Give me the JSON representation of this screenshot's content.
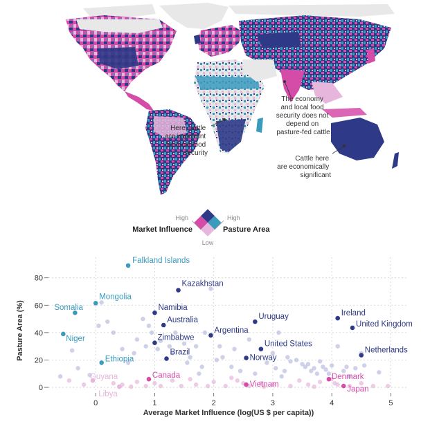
{
  "map": {
    "annotations": [
      {
        "id": "africa",
        "lines": [
          "Here, cattle",
          "are important",
          "for local food",
          "security"
        ]
      },
      {
        "id": "asia",
        "lines": [
          "The economy",
          "and local food",
          "security does not",
          "depend on",
          "pasture-fed cattle"
        ]
      },
      {
        "id": "australia",
        "lines": [
          "Cattle here",
          "are economically",
          "significant"
        ]
      }
    ]
  },
  "legend": {
    "market_label": "Market Influence",
    "pasture_label": "Pasture Area",
    "high_left": "High",
    "high_right": "High",
    "low": "Low",
    "colors": {
      "both_high": "#2e3a87",
      "market_high": "#d44ba8",
      "pasture_high": "#3a9bbd",
      "both_low": "#e6b6dc"
    }
  },
  "chart_data": {
    "type": "scatter",
    "xlabel": "Average Market Influence (log(US $ per capita))",
    "ylabel": "Pasture Area (%)",
    "xlim": [
      -0.8,
      5.3
    ],
    "ylim": [
      -3,
      95
    ],
    "xticks": [
      0,
      1,
      2,
      3,
      4,
      5
    ],
    "yticks": [
      0,
      20,
      40,
      60,
      80
    ],
    "grid": true,
    "colors": {
      "dark": "#2e3a87",
      "teal": "#3a9bbd",
      "magenta": "#d44ba8",
      "light": "#b9bede",
      "pink": "#e6b6dc"
    },
    "labeled_points": [
      {
        "name": "Falkland Islands",
        "x": 0.55,
        "y": 89,
        "color": "teal"
      },
      {
        "name": "Kazakhstan",
        "x": 1.4,
        "y": 71,
        "color": "dark"
      },
      {
        "name": "Mongolia",
        "x": 0.0,
        "y": 61.5,
        "color": "teal"
      },
      {
        "name": "Somalia",
        "x": -0.35,
        "y": 54.5,
        "color": "teal"
      },
      {
        "name": "Namibia",
        "x": 1.0,
        "y": 54.5,
        "color": "dark"
      },
      {
        "name": "Australia",
        "x": 1.15,
        "y": 45.5,
        "color": "dark"
      },
      {
        "name": "Uruguay",
        "x": 2.7,
        "y": 48,
        "color": "dark"
      },
      {
        "name": "Ireland",
        "x": 4.1,
        "y": 50.5,
        "color": "dark"
      },
      {
        "name": "United Kingdom",
        "x": 4.35,
        "y": 43.5,
        "color": "dark"
      },
      {
        "name": "Niger",
        "x": -0.55,
        "y": 39,
        "color": "teal"
      },
      {
        "name": "Argentina",
        "x": 1.95,
        "y": 38,
        "color": "dark"
      },
      {
        "name": "Zimbabwe",
        "x": 1.0,
        "y": 32.5,
        "color": "dark"
      },
      {
        "name": "United States",
        "x": 2.8,
        "y": 28,
        "color": "dark"
      },
      {
        "name": "Netherlands",
        "x": 4.5,
        "y": 23.5,
        "color": "dark"
      },
      {
        "name": "Brazil",
        "x": 1.2,
        "y": 21,
        "color": "dark"
      },
      {
        "name": "Norway",
        "x": 2.55,
        "y": 21.5,
        "color": "dark"
      },
      {
        "name": "Ethiopia",
        "x": 0.1,
        "y": 18,
        "color": "teal"
      },
      {
        "name": "Guyana",
        "x": -0.05,
        "y": 5,
        "color": "pink"
      },
      {
        "name": "Canada",
        "x": 0.9,
        "y": 6,
        "color": "magenta"
      },
      {
        "name": "Vietnam",
        "x": 2.55,
        "y": 2,
        "color": "magenta"
      },
      {
        "name": "Denmark",
        "x": 3.95,
        "y": 6,
        "color": "magenta"
      },
      {
        "name": "Japan",
        "x": 4.2,
        "y": 1,
        "color": "magenta"
      },
      {
        "name": "Libya",
        "x": 0.4,
        "y": 0.5,
        "color": "pink"
      }
    ],
    "other_points": [
      [
        -0.4,
        27
      ],
      [
        0.05,
        45
      ],
      [
        0.1,
        62
      ],
      [
        0.2,
        48
      ],
      [
        0.3,
        40
      ],
      [
        0.45,
        28
      ],
      [
        0.55,
        18
      ],
      [
        0.65,
        25
      ],
      [
        0.7,
        35
      ],
      [
        0.8,
        50
      ],
      [
        0.85,
        30
      ],
      [
        0.9,
        45
      ],
      [
        0.95,
        40
      ],
      [
        1.05,
        28
      ],
      [
        1.1,
        34
      ],
      [
        1.25,
        30
      ],
      [
        1.3,
        25
      ],
      [
        1.35,
        40
      ],
      [
        1.5,
        32
      ],
      [
        1.55,
        18
      ],
      [
        1.6,
        22
      ],
      [
        1.7,
        30
      ],
      [
        1.75,
        10
      ],
      [
        1.8,
        15
      ],
      [
        1.85,
        40
      ],
      [
        1.95,
        72
      ],
      [
        2.05,
        20
      ],
      [
        2.1,
        30
      ],
      [
        2.15,
        22
      ],
      [
        2.3,
        15
      ],
      [
        2.35,
        28
      ],
      [
        2.4,
        5
      ],
      [
        2.45,
        12
      ],
      [
        2.6,
        35
      ],
      [
        2.7,
        10
      ],
      [
        2.8,
        3
      ],
      [
        2.9,
        18
      ],
      [
        3.0,
        25
      ],
      [
        3.05,
        14
      ],
      [
        3.1,
        40
      ],
      [
        3.15,
        8
      ],
      [
        3.2,
        12
      ],
      [
        3.25,
        22
      ],
      [
        3.3,
        19
      ],
      [
        3.4,
        20
      ],
      [
        3.5,
        17
      ],
      [
        3.55,
        15
      ],
      [
        3.6,
        17
      ],
      [
        3.65,
        12
      ],
      [
        3.7,
        14
      ],
      [
        3.75,
        10
      ],
      [
        3.8,
        19
      ],
      [
        3.85,
        15
      ],
      [
        3.9,
        13
      ],
      [
        3.95,
        10
      ],
      [
        4.0,
        16
      ],
      [
        4.05,
        3
      ],
      [
        4.1,
        30
      ],
      [
        4.2,
        12
      ],
      [
        4.25,
        15
      ],
      [
        4.3,
        8
      ],
      [
        4.4,
        14
      ],
      [
        4.5,
        25
      ],
      [
        4.55,
        16
      ],
      [
        4.8,
        11
      ],
      [
        4.95,
        1
      ],
      [
        -0.6,
        8
      ],
      [
        -0.45,
        5
      ],
      [
        -0.3,
        14
      ],
      [
        -0.2,
        2
      ],
      [
        -0.1,
        9
      ],
      [
        0.3,
        3
      ],
      [
        0.45,
        2
      ],
      [
        0.6,
        0.5
      ],
      [
        0.7,
        4
      ],
      [
        0.85,
        1
      ],
      [
        1.0,
        3
      ],
      [
        1.1,
        1
      ],
      [
        1.3,
        5
      ],
      [
        1.45,
        1
      ],
      [
        1.6,
        6
      ],
      [
        1.7,
        2
      ],
      [
        1.9,
        1
      ],
      [
        2.0,
        4
      ],
      [
        2.2,
        1
      ],
      [
        2.3,
        7
      ],
      [
        2.5,
        3
      ],
      [
        2.6,
        1
      ],
      [
        2.85,
        0.5
      ],
      [
        3.0,
        2
      ],
      [
        3.3,
        1
      ],
      [
        3.45,
        5
      ],
      [
        3.6,
        2
      ],
      [
        3.7,
        0.5
      ],
      [
        3.8,
        4
      ],
      [
        4.0,
        6
      ],
      [
        4.1,
        2
      ],
      [
        4.3,
        1
      ],
      [
        4.5,
        3
      ],
      [
        4.7,
        1
      ]
    ]
  }
}
